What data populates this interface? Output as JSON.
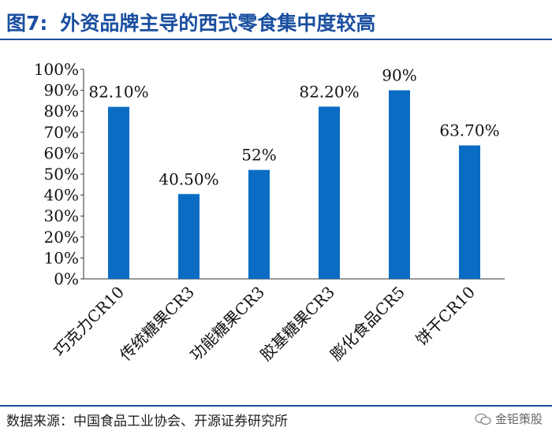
{
  "figure": {
    "number": "图7:",
    "title": "外资品牌主导的西式零食集中度较高"
  },
  "source": "数据来源：中国食品工业协会、开源证券研究所",
  "watermark": "金钜策股",
  "colors": {
    "bar": "#0b6cc4",
    "title": "#1a4fa0",
    "text": "#111111",
    "axis": "#333333"
  },
  "chart_data": {
    "type": "bar",
    "categories": [
      "巧克力CR10",
      "传统糖果CR3",
      "功能糖果CR3",
      "胶基糖果CR3",
      "膨化食品CR5",
      "饼干CR10"
    ],
    "values": [
      82.1,
      40.5,
      52,
      82.2,
      90,
      63.7
    ],
    "data_labels": [
      "82.10%",
      "40.50%",
      "52%",
      "82.20%",
      "90%",
      "63.70%"
    ],
    "y_ticks": [
      "0%",
      "10%",
      "20%",
      "30%",
      "40%",
      "50%",
      "60%",
      "70%",
      "80%",
      "90%",
      "100%"
    ],
    "ylim": [
      0,
      100
    ],
    "title": "外资品牌主导的西式零食集中度较高",
    "xlabel": "",
    "ylabel": "",
    "grid": false,
    "legend": "none"
  }
}
